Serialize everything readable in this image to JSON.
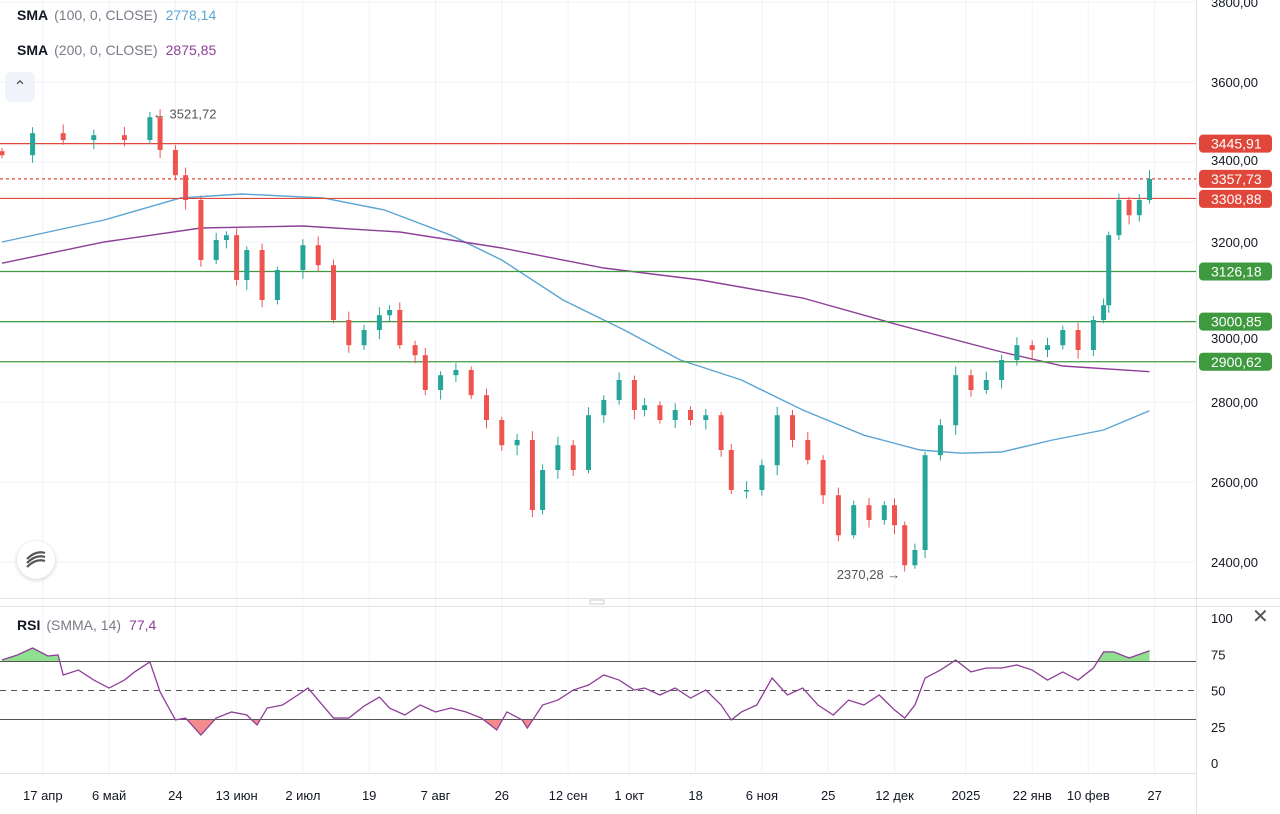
{
  "legend": {
    "sma100": {
      "name": "SMA",
      "params": "(100, 0, CLOSE)",
      "value": "2778,14"
    },
    "sma200": {
      "name": "SMA",
      "params": "(200, 0, CLOSE)",
      "value": "2875,85"
    },
    "rsi": {
      "name": "RSI",
      "params": "(SMMA, 14)",
      "value": "77,4"
    }
  },
  "colors": {
    "up": "#26a69a",
    "down": "#ef5350",
    "sma100": "#5ba4d4",
    "sma200": "#8e3f98",
    "res": "#e0473a",
    "sup": "#3f9a3f",
    "rsi": "#8e3f98"
  },
  "chart_data": {
    "type": "candlestick",
    "price_axis": {
      "ylim": [
        2320,
        3800
      ],
      "ticks": [
        "2400,00",
        "2600,00",
        "2800,00",
        "3000,00",
        "3200,00",
        "3400,00",
        "3600,00",
        "3800,00"
      ],
      "tick_values": [
        2400,
        2600,
        2800,
        3000,
        3200,
        3400,
        3600,
        3800
      ]
    },
    "x_axis": {
      "labels": [
        {
          "d": 8,
          "t": "17 апр"
        },
        {
          "d": 21,
          "t": "6 май"
        },
        {
          "d": 34,
          "t": "24"
        },
        {
          "d": 46,
          "t": "13 июн"
        },
        {
          "d": 59,
          "t": "2 июл"
        },
        {
          "d": 72,
          "t": "19"
        },
        {
          "d": 85,
          "t": "7 авг"
        },
        {
          "d": 98,
          "t": "26"
        },
        {
          "d": 111,
          "t": "12 сен"
        },
        {
          "d": 123,
          "t": "1 окт"
        },
        {
          "d": 136,
          "t": "18"
        },
        {
          "d": 149,
          "t": "6 ноя"
        },
        {
          "d": 162,
          "t": "25"
        },
        {
          "d": 175,
          "t": "12 дек"
        },
        {
          "d": 189,
          "t": "2025"
        },
        {
          "d": 202,
          "t": "22 янв"
        },
        {
          "d": 213,
          "t": "10 фев"
        },
        {
          "d": 226,
          "t": "27"
        }
      ]
    },
    "closes": [
      [
        0,
        3417
      ],
      [
        6,
        3472
      ],
      [
        12,
        3455
      ],
      [
        18,
        3467
      ],
      [
        24,
        3455
      ],
      [
        29,
        3512
      ],
      [
        31,
        3430
      ],
      [
        34,
        3367
      ],
      [
        36,
        3305
      ],
      [
        39,
        3155
      ],
      [
        42,
        3205
      ],
      [
        44,
        3217
      ],
      [
        46,
        3105
      ],
      [
        48,
        3180
      ],
      [
        51,
        3055
      ],
      [
        54,
        3130
      ],
      [
        59,
        3192
      ],
      [
        62,
        3142
      ],
      [
        65,
        3005
      ],
      [
        68,
        2942
      ],
      [
        71,
        2980
      ],
      [
        74,
        3017
      ],
      [
        76,
        3030
      ],
      [
        78,
        2942
      ],
      [
        81,
        2917
      ],
      [
        83,
        2830
      ],
      [
        86,
        2867
      ],
      [
        89,
        2880
      ],
      [
        92,
        2817
      ],
      [
        95,
        2755
      ],
      [
        98,
        2692
      ],
      [
        101,
        2705
      ],
      [
        104,
        2530
      ],
      [
        106,
        2630
      ],
      [
        109,
        2692
      ],
      [
        112,
        2630
      ],
      [
        115,
        2767
      ],
      [
        118,
        2805
      ],
      [
        121,
        2855
      ],
      [
        124,
        2780
      ],
      [
        126,
        2792
      ],
      [
        129,
        2755
      ],
      [
        132,
        2780
      ],
      [
        135,
        2755
      ],
      [
        138,
        2767
      ],
      [
        141,
        2680
      ],
      [
        143,
        2580
      ],
      [
        146,
        2580
      ],
      [
        149,
        2642
      ],
      [
        152,
        2767
      ],
      [
        155,
        2705
      ],
      [
        158,
        2655
      ],
      [
        161,
        2567
      ],
      [
        164,
        2467
      ],
      [
        167,
        2542
      ],
      [
        170,
        2505
      ],
      [
        173,
        2542
      ],
      [
        175,
        2492
      ],
      [
        177,
        2392
      ],
      [
        179,
        2430
      ],
      [
        181,
        2667
      ],
      [
        184,
        2742
      ],
      [
        187,
        2867
      ],
      [
        190,
        2830
      ],
      [
        193,
        2855
      ],
      [
        196,
        2905
      ],
      [
        199,
        2942
      ],
      [
        202,
        2930
      ],
      [
        205,
        2942
      ],
      [
        208,
        2980
      ],
      [
        211,
        2930
      ],
      [
        214,
        3005
      ],
      [
        216,
        3042
      ],
      [
        217,
        3217
      ],
      [
        219,
        3305
      ],
      [
        221,
        3267
      ],
      [
        223,
        3305
      ],
      [
        225,
        3357.73
      ]
    ],
    "sma100": [
      [
        0,
        3200
      ],
      [
        20,
        3255
      ],
      [
        35,
        3310
      ],
      [
        47,
        3320
      ],
      [
        63,
        3310
      ],
      [
        75,
        3280
      ],
      [
        88,
        3217
      ],
      [
        98,
        3155
      ],
      [
        110,
        3055
      ],
      [
        122,
        2980
      ],
      [
        133,
        2905
      ],
      [
        145,
        2855
      ],
      [
        157,
        2780
      ],
      [
        169,
        2717
      ],
      [
        180,
        2680
      ],
      [
        188,
        2672
      ],
      [
        196,
        2675
      ],
      [
        206,
        2705
      ],
      [
        216,
        2730
      ],
      [
        225,
        2778.14
      ]
    ],
    "sma200": [
      [
        0,
        3147
      ],
      [
        20,
        3200
      ],
      [
        39,
        3235
      ],
      [
        59,
        3240
      ],
      [
        78,
        3225
      ],
      [
        98,
        3185
      ],
      [
        118,
        3135
      ],
      [
        137,
        3105
      ],
      [
        157,
        3060
      ],
      [
        176,
        2992
      ],
      [
        196,
        2925
      ],
      [
        208,
        2890
      ],
      [
        225,
        2875.85
      ]
    ],
    "levels": [
      {
        "value": 3445.91,
        "label": "3445,91",
        "kind": "resistance"
      },
      {
        "value": 3357.73,
        "label": "3357,73",
        "kind": "last"
      },
      {
        "value": 3308.88,
        "label": "3308,88",
        "kind": "resistance"
      },
      {
        "value": 3126.18,
        "label": "3126,18",
        "kind": "support"
      },
      {
        "value": 3000.85,
        "label": "3000,85",
        "kind": "support"
      },
      {
        "value": 2900.62,
        "label": "2900,62",
        "kind": "support"
      }
    ],
    "annotations": [
      {
        "d": 29,
        "value": 3521.72,
        "label": "3521,72",
        "type": "high"
      },
      {
        "d": 177,
        "value": 2370.28,
        "label": "2370,28",
        "type": "low"
      }
    ],
    "rsi": {
      "ylim": [
        0,
        100
      ],
      "ticks": [
        "0",
        "25",
        "50",
        "75",
        "100"
      ],
      "tick_values": [
        0,
        25,
        50,
        75,
        100
      ],
      "bands": [
        30,
        50,
        70
      ],
      "values": [
        [
          0,
          71
        ],
        [
          3,
          74.5
        ],
        [
          6,
          79.3
        ],
        [
          9,
          73.8
        ],
        [
          11,
          74.5
        ],
        [
          12,
          60.7
        ],
        [
          15,
          64.1
        ],
        [
          18,
          57.2
        ],
        [
          21,
          51.7
        ],
        [
          24,
          57.2
        ],
        [
          26,
          62.8
        ],
        [
          29,
          69.7
        ],
        [
          31,
          49
        ],
        [
          34,
          29.7
        ],
        [
          36,
          31
        ],
        [
          39,
          19.3
        ],
        [
          42,
          31
        ],
        [
          45,
          35.2
        ],
        [
          48,
          33.1
        ],
        [
          50,
          26.2
        ],
        [
          52,
          37.9
        ],
        [
          55,
          40
        ],
        [
          58,
          46.9
        ],
        [
          60,
          51.7
        ],
        [
          62,
          43.4
        ],
        [
          65,
          31
        ],
        [
          68,
          31
        ],
        [
          71,
          39.3
        ],
        [
          74,
          45.5
        ],
        [
          76,
          37.9
        ],
        [
          79,
          33.1
        ],
        [
          82,
          40
        ],
        [
          85,
          35.2
        ],
        [
          88,
          37.9
        ],
        [
          91,
          35.2
        ],
        [
          94,
          31
        ],
        [
          97,
          22.8
        ],
        [
          99,
          35.2
        ],
        [
          102,
          29.7
        ],
        [
          103,
          24.1
        ],
        [
          106,
          40
        ],
        [
          109,
          43.4
        ],
        [
          112,
          50.3
        ],
        [
          115,
          53.8
        ],
        [
          118,
          60.7
        ],
        [
          121,
          57.2
        ],
        [
          124,
          50.3
        ],
        [
          126,
          51.7
        ],
        [
          129,
          46.9
        ],
        [
          132,
          51.7
        ],
        [
          135,
          44.8
        ],
        [
          138,
          50.3
        ],
        [
          141,
          40
        ],
        [
          143,
          29.7
        ],
        [
          145,
          35.2
        ],
        [
          148,
          40
        ],
        [
          151,
          58.6
        ],
        [
          154,
          46.9
        ],
        [
          157,
          51.7
        ],
        [
          160,
          40
        ],
        [
          163,
          33.1
        ],
        [
          166,
          43.4
        ],
        [
          169,
          40
        ],
        [
          172,
          46.9
        ],
        [
          175,
          36.6
        ],
        [
          177,
          31
        ],
        [
          179,
          40
        ],
        [
          181,
          58.6
        ],
        [
          184,
          64.1
        ],
        [
          187,
          71
        ],
        [
          190,
          62.8
        ],
        [
          193,
          65.5
        ],
        [
          196,
          65.5
        ],
        [
          199,
          67.6
        ],
        [
          202,
          64.1
        ],
        [
          205,
          57.2
        ],
        [
          208,
          62.8
        ],
        [
          211,
          57.2
        ],
        [
          214,
          65.5
        ],
        [
          216,
          76.6
        ],
        [
          218,
          76.6
        ],
        [
          221,
          72.4
        ],
        [
          225,
          77.4
        ]
      ]
    }
  }
}
